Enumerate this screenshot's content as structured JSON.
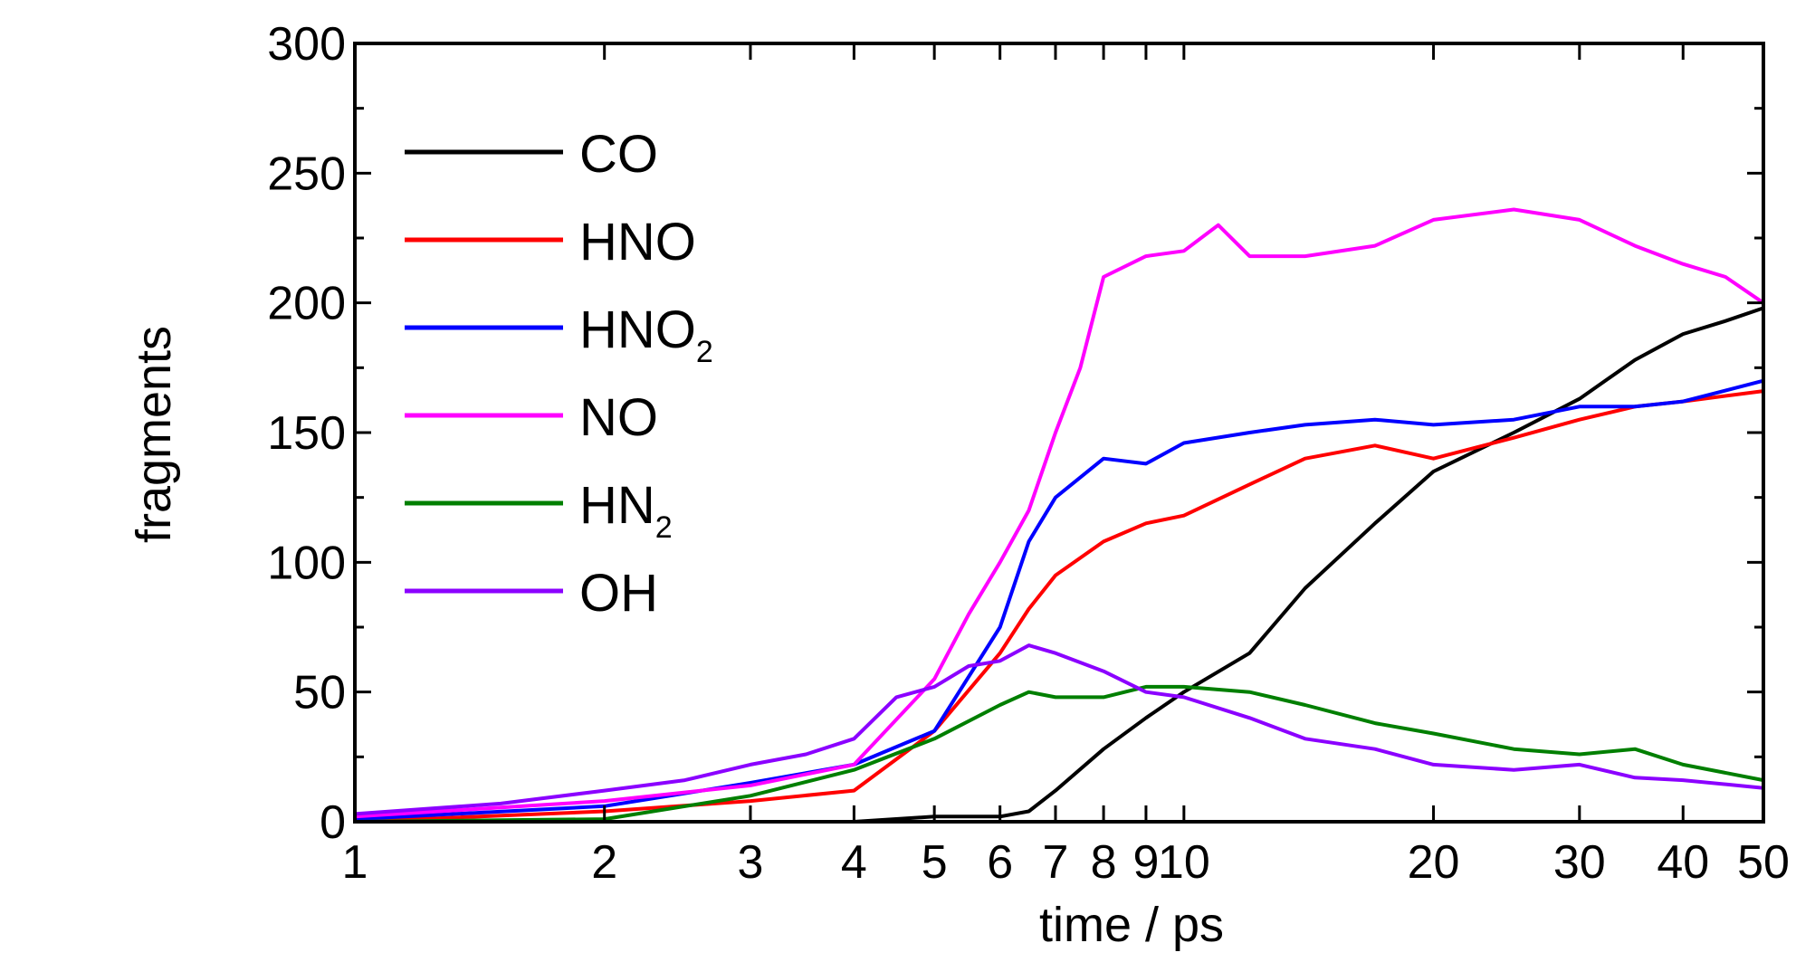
{
  "chart_data": {
    "type": "line",
    "title": "",
    "xlabel": "time / ps",
    "ylabel": "fragments",
    "xscale": "log",
    "xlim": [
      1,
      50
    ],
    "ylim": [
      0,
      300
    ],
    "xticks": [
      1,
      2,
      3,
      4,
      5,
      6,
      7,
      8,
      9,
      10,
      20,
      30,
      40,
      50
    ],
    "xtick_labels": [
      "1",
      "2",
      "3",
      "4",
      "5",
      "6",
      "7",
      "8",
      "9",
      "10",
      "20",
      "30",
      "40",
      "50"
    ],
    "yticks": [
      0,
      50,
      100,
      150,
      200,
      250,
      300
    ],
    "ytick_labels": [
      "0",
      "50",
      "100",
      "150",
      "200",
      "250",
      "300"
    ],
    "grid": false,
    "legend_position": "top-left",
    "series": [
      {
        "name": "CO",
        "label_main": "CO",
        "label_sub": "",
        "color": "#000000",
        "x": [
          1,
          2,
          4,
          5,
          6,
          6.5,
          7,
          8,
          9,
          10,
          12,
          14,
          17,
          20,
          25,
          30,
          35,
          40,
          45,
          50
        ],
        "y": [
          0,
          0,
          0,
          2,
          2,
          4,
          12,
          28,
          40,
          50,
          65,
          90,
          115,
          135,
          150,
          163,
          178,
          188,
          193,
          198
        ]
      },
      {
        "name": "HNO",
        "label_main": "HNO",
        "label_sub": "",
        "color": "#ff0000",
        "x": [
          1,
          2,
          3,
          4,
          5,
          6,
          6.5,
          7,
          8,
          9,
          10,
          12,
          14,
          17,
          20,
          25,
          30,
          35,
          40,
          50
        ],
        "y": [
          0,
          4,
          8,
          12,
          35,
          65,
          82,
          95,
          108,
          115,
          118,
          130,
          140,
          145,
          140,
          148,
          155,
          160,
          162,
          166
        ]
      },
      {
        "name": "HNO2",
        "label_main": "HNO",
        "label_sub": "2",
        "color": "#0000ff",
        "x": [
          1,
          2,
          3,
          4,
          5,
          6,
          6.5,
          7,
          8,
          9,
          10,
          12,
          14,
          17,
          20,
          25,
          30,
          35,
          40,
          50
        ],
        "y": [
          1,
          6,
          15,
          22,
          35,
          75,
          108,
          125,
          140,
          138,
          146,
          150,
          153,
          155,
          153,
          155,
          160,
          160,
          162,
          170
        ]
      },
      {
        "name": "NO",
        "label_main": "NO",
        "label_sub": "",
        "color": "#ff00ff",
        "x": [
          1,
          2,
          3,
          4,
          5,
          5.5,
          6,
          6.5,
          7,
          7.5,
          8,
          9,
          10,
          11,
          12,
          14,
          17,
          20,
          25,
          30,
          35,
          40,
          45,
          50
        ],
        "y": [
          2,
          8,
          14,
          22,
          55,
          80,
          100,
          120,
          150,
          175,
          210,
          218,
          220,
          230,
          218,
          218,
          222,
          232,
          236,
          232,
          222,
          215,
          210,
          200
        ]
      },
      {
        "name": "HN2",
        "label_main": "HN",
        "label_sub": "2",
        "color": "#007f00",
        "x": [
          1,
          2,
          3,
          4,
          5,
          6,
          6.5,
          7,
          8,
          9,
          10,
          12,
          14,
          17,
          20,
          25,
          30,
          35,
          40,
          50
        ],
        "y": [
          0,
          1,
          10,
          20,
          32,
          45,
          50,
          48,
          48,
          52,
          52,
          50,
          45,
          38,
          34,
          28,
          26,
          28,
          22,
          16
        ]
      },
      {
        "name": "OH",
        "label_main": "OH",
        "label_sub": "",
        "color": "#8b00ff",
        "x": [
          1,
          1.5,
          2,
          2.5,
          3,
          3.5,
          4,
          4.5,
          5,
          5.5,
          6,
          6.5,
          7,
          8,
          9,
          10,
          12,
          14,
          17,
          20,
          25,
          30,
          35,
          40,
          50
        ],
        "y": [
          3,
          7,
          12,
          16,
          22,
          26,
          32,
          48,
          52,
          60,
          62,
          68,
          65,
          58,
          50,
          48,
          40,
          32,
          28,
          22,
          20,
          22,
          17,
          16,
          13
        ]
      }
    ]
  }
}
